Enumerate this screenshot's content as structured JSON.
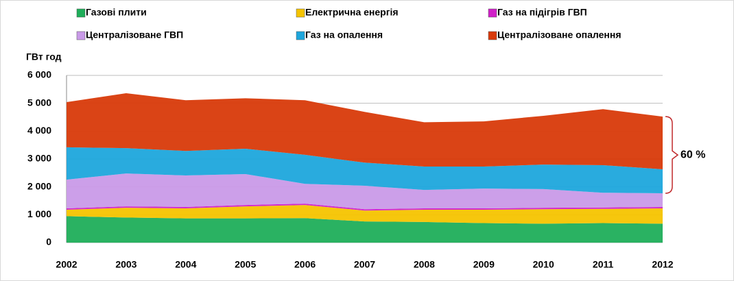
{
  "chart_data": {
    "type": "stacked_area",
    "y_label": "ГВт год",
    "categories": [
      "2002",
      "2003",
      "2004",
      "2005",
      "2006",
      "2007",
      "2008",
      "2009",
      "2010",
      "2011",
      "2012"
    ],
    "series": [
      {
        "name": "Газові плити",
        "color": "#1fae5a",
        "values": [
          950,
          900,
          870,
          870,
          880,
          760,
          740,
          700,
          680,
          700,
          680
        ]
      },
      {
        "name": "Електрична енергія",
        "color": "#f5c400",
        "values": [
          230,
          350,
          360,
          430,
          470,
          390,
          440,
          480,
          520,
          510,
          550
        ]
      },
      {
        "name": "Газ на підігрів ГВП",
        "color": "#d020c8",
        "values": [
          50,
          50,
          50,
          50,
          50,
          50,
          50,
          50,
          50,
          50,
          50
        ]
      },
      {
        "name": "Централізоване ГВП",
        "color": "#c99ae8",
        "values": [
          1030,
          1180,
          1130,
          1110,
          710,
          840,
          660,
          710,
          670,
          530,
          490
        ]
      },
      {
        "name": "Газ на опалення",
        "color": "#1ea6dc",
        "values": [
          1160,
          910,
          880,
          910,
          1040,
          830,
          840,
          790,
          880,
          990,
          860
        ]
      },
      {
        "name": "Централізоване опалення",
        "color": "#d83a0a",
        "values": [
          1620,
          1970,
          1820,
          1810,
          1960,
          1820,
          1590,
          1620,
          1750,
          2010,
          1890
        ]
      }
    ],
    "ylim": [
      0,
      6000
    ],
    "yticks": [
      0,
      {
        "value": 1000,
        "label": "1 000"
      },
      {
        "value": 2000,
        "label": "2 000"
      },
      {
        "value": 3000,
        "label": "3 000"
      },
      {
        "value": 4000,
        "label": "4 000"
      },
      {
        "value": 5000,
        "label": "5 000"
      },
      {
        "value": 6000,
        "label": "6 000"
      }
    ],
    "grid": true,
    "annotation": "60 %",
    "annotation_color": "#c0282a"
  }
}
